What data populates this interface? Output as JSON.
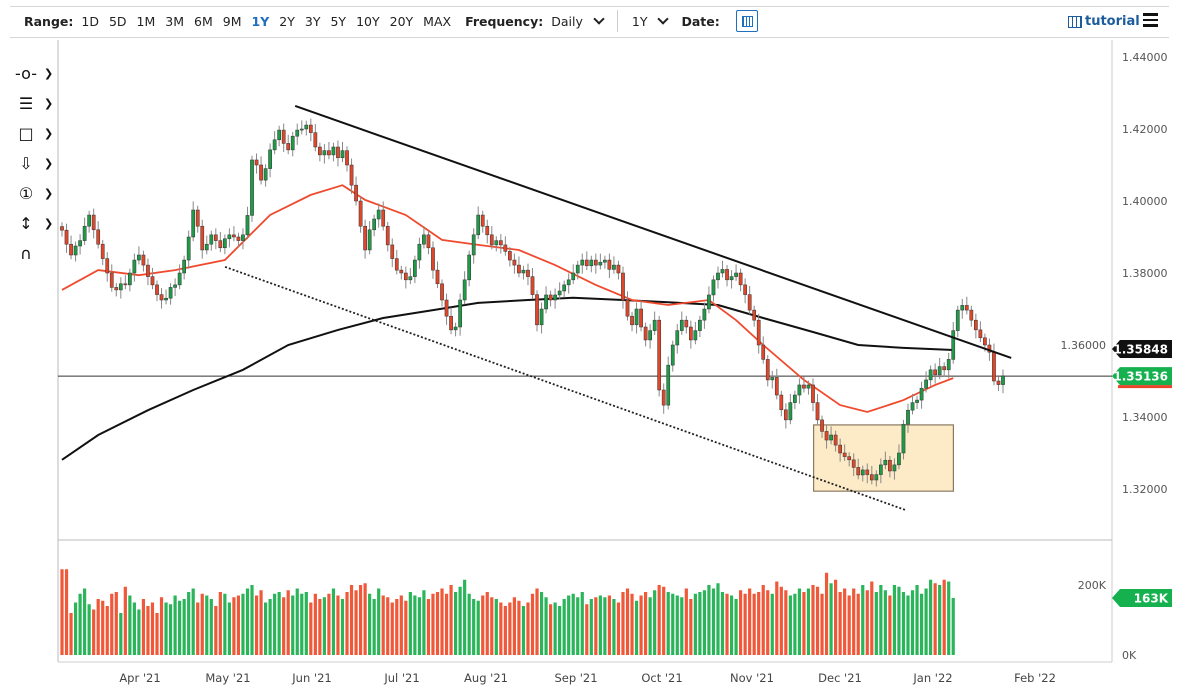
{
  "toolbar": {
    "range_label": "Range:",
    "ranges": [
      "1D",
      "5D",
      "1M",
      "3M",
      "6M",
      "9M",
      "1Y",
      "2Y",
      "3Y",
      "5Y",
      "10Y",
      "20Y",
      "MAX"
    ],
    "active_range": "1Y",
    "frequency_label": "Frequency:",
    "frequency_value": "Daily",
    "period_value": "1Y",
    "date_label": "Date:",
    "tutorial_label": "tutorial",
    "accent_color": "#1e6fbf"
  },
  "left_tools": [
    {
      "icon": "line-node-icon",
      "glyph": "-o-"
    },
    {
      "icon": "fib-lines-icon",
      "glyph": "☰"
    },
    {
      "icon": "rectangle-icon",
      "glyph": "□"
    },
    {
      "icon": "arrow-down-icon",
      "glyph": "⇩"
    },
    {
      "icon": "number-marker-icon",
      "glyph": "①"
    },
    {
      "icon": "measure-icon",
      "glyph": "↕"
    },
    {
      "icon": "magnet-icon",
      "glyph": "∩"
    }
  ],
  "chart_data": {
    "type": "candlestick",
    "frequency": "Daily",
    "x_tick_labels": [
      "Apr '21",
      "May '21",
      "Jun '21",
      "Jul '21",
      "Aug '21",
      "Sep '21",
      "Oct '21",
      "Nov '21",
      "Dec '21",
      "Jan '22",
      "Feb '22"
    ],
    "y_tick_labels": [
      "1.44000",
      "1.42000",
      "1.40000",
      "1.38000",
      "1.36000",
      "1.34000",
      "1.32000"
    ],
    "ylim": [
      1.3085,
      1.4455
    ],
    "volume_tick_labels": [
      "200K",
      "0K"
    ],
    "volume_ylim": [
      0,
      250
    ],
    "colors": {
      "up": "#1f9a47",
      "down": "#e0472a",
      "ma_fast": "#f04a2e",
      "ma_slow": "#111111"
    },
    "closes": [
      1.3919,
      1.388,
      1.385,
      1.3875,
      1.389,
      1.393,
      1.3961,
      1.392,
      1.388,
      1.384,
      1.38,
      1.376,
      1.3753,
      1.377,
      1.3767,
      1.38,
      1.3836,
      1.385,
      1.3822,
      1.379,
      1.3767,
      1.374,
      1.3725,
      1.373,
      1.376,
      1.3767,
      1.38,
      1.3836,
      1.39,
      1.3975,
      1.393,
      1.3864,
      1.388,
      1.3906,
      1.389,
      1.387,
      1.3895,
      1.3906,
      1.39,
      1.389,
      1.3906,
      1.396,
      1.4114,
      1.41,
      1.4058,
      1.409,
      1.4142,
      1.417,
      1.4197,
      1.416,
      1.4142,
      1.418,
      1.4197,
      1.42,
      1.4211,
      1.419,
      1.415,
      1.4128,
      1.414,
      1.4128,
      1.415,
      1.412,
      1.414,
      1.41,
      1.4044,
      1.4,
      1.393,
      1.3864,
      1.392,
      1.395,
      1.3975,
      1.393,
      1.3878,
      1.384,
      1.3808,
      1.38,
      1.3781,
      1.379,
      1.3836,
      1.388,
      1.3906,
      1.387,
      1.3808,
      1.377,
      1.3725,
      1.368,
      1.3642,
      1.365,
      1.3725,
      1.3781,
      1.385,
      1.3906,
      1.3961,
      1.393,
      1.3906,
      1.3878,
      1.389,
      1.3878,
      1.386,
      1.3836,
      1.3822,
      1.38,
      1.3808,
      1.379,
      1.374,
      1.3656,
      1.37,
      1.3739,
      1.3725,
      1.3739,
      1.375,
      1.3767,
      1.3781,
      1.38,
      1.3822,
      1.3836,
      1.382,
      1.3836,
      1.3822,
      1.383,
      1.3836,
      1.381,
      1.3822,
      1.38,
      1.3725,
      1.368,
      1.3656,
      1.37,
      1.365,
      1.3614,
      1.364,
      1.3669,
      1.3475,
      1.3433,
      1.3544,
      1.36,
      1.364,
      1.3669,
      1.365,
      1.3614,
      1.364,
      1.3669,
      1.37,
      1.3739,
      1.3781,
      1.38,
      1.381,
      1.3781,
      1.379,
      1.38,
      1.3767,
      1.374,
      1.3697,
      1.3669,
      1.36,
      1.356,
      1.3503,
      1.351,
      1.3461,
      1.342,
      1.3392,
      1.344,
      1.3461,
      1.3489,
      1.348,
      1.3489,
      1.344,
      1.3392,
      1.336,
      1.3336,
      1.335,
      1.3322,
      1.33,
      1.329,
      1.3281,
      1.326,
      1.3239,
      1.3253,
      1.324,
      1.3225,
      1.324,
      1.3267,
      1.328,
      1.325,
      1.3267,
      1.33,
      1.338,
      1.3419,
      1.344,
      1.3447,
      1.348,
      1.3503,
      1.3531,
      1.3517,
      1.354,
      1.3531,
      1.356,
      1.364,
      1.3697,
      1.371,
      1.3697,
      1.3669,
      1.3642,
      1.362,
      1.36,
      1.358,
      1.35,
      1.349,
      1.3514
    ],
    "volumes_k": [
      245,
      245,
      120,
      150,
      175,
      190,
      145,
      130,
      160,
      155,
      140,
      175,
      180,
      120,
      195,
      170,
      150,
      130,
      160,
      140,
      150,
      120,
      165,
      150,
      145,
      170,
      155,
      160,
      180,
      190,
      150,
      175,
      170,
      160,
      140,
      180,
      175,
      150,
      165,
      170,
      175,
      190,
      200,
      170,
      185,
      150,
      160,
      175,
      180,
      165,
      185,
      170,
      190,
      175,
      180,
      150,
      175,
      160,
      165,
      175,
      190,
      170,
      160,
      180,
      200,
      185,
      200,
      205,
      175,
      160,
      190,
      170,
      165,
      150,
      160,
      170,
      155,
      180,
      170,
      165,
      185,
      160,
      175,
      180,
      190,
      175,
      200,
      180,
      195,
      215,
      175,
      160,
      155,
      170,
      180,
      165,
      160,
      150,
      140,
      150,
      165,
      155,
      140,
      150,
      175,
      190,
      180,
      165,
      145,
      150,
      140,
      160,
      170,
      175,
      165,
      180,
      145,
      160,
      165,
      170,
      165,
      170,
      160,
      150,
      180,
      190,
      175,
      155,
      170,
      180,
      165,
      185,
      200,
      195,
      180,
      175,
      170,
      165,
      190,
      160,
      175,
      180,
      185,
      200,
      190,
      205,
      180,
      175,
      170,
      160,
      185,
      175,
      190,
      175,
      180,
      200,
      185,
      175,
      210,
      195,
      185,
      170,
      175,
      190,
      180,
      190,
      200,
      195,
      175,
      235,
      205,
      215,
      180,
      190,
      170,
      190,
      175,
      200,
      185,
      210,
      180,
      200,
      185,
      170,
      200,
      195,
      180,
      170,
      185,
      200,
      175,
      190,
      215,
      205,
      200,
      215,
      210,
      163
    ],
    "ma_fast": [
      [
        0,
        1.3753
      ],
      [
        8,
        1.3808
      ],
      [
        17,
        1.3794
      ],
      [
        25,
        1.3808
      ],
      [
        36,
        1.3836
      ],
      [
        46,
        1.3961
      ],
      [
        55,
        1.4017
      ],
      [
        62,
        1.4044
      ],
      [
        67,
        1.4003
      ],
      [
        76,
        1.3961
      ],
      [
        84,
        1.3892
      ],
      [
        92,
        1.3878
      ],
      [
        101,
        1.3864
      ],
      [
        109,
        1.3822
      ],
      [
        118,
        1.3767
      ],
      [
        126,
        1.3725
      ],
      [
        134,
        1.3711
      ],
      [
        143,
        1.3725
      ],
      [
        149,
        1.3669
      ],
      [
        155,
        1.36
      ],
      [
        164,
        1.3503
      ],
      [
        172,
        1.3433
      ],
      [
        178,
        1.3414
      ],
      [
        186,
        1.3447
      ],
      [
        193,
        1.3489
      ],
      [
        197,
        1.3508
      ]
    ],
    "ma_slow": [
      [
        0,
        1.3281
      ],
      [
        8,
        1.335
      ],
      [
        19,
        1.3419
      ],
      [
        29,
        1.3475
      ],
      [
        40,
        1.3531
      ],
      [
        50,
        1.36
      ],
      [
        61,
        1.3642
      ],
      [
        71,
        1.3675
      ],
      [
        82,
        1.3697
      ],
      [
        92,
        1.3717
      ],
      [
        103,
        1.3725
      ],
      [
        113,
        1.3731
      ],
      [
        124,
        1.3725
      ],
      [
        134,
        1.3719
      ],
      [
        145,
        1.3711
      ],
      [
        155,
        1.3675
      ],
      [
        166,
        1.3636
      ],
      [
        176,
        1.36
      ],
      [
        186,
        1.3592
      ],
      [
        197,
        1.3586
      ]
    ],
    "trendline_resistance": {
      "from": [
        "2021-05-25",
        1.4264
      ],
      "to": [
        "2022-01-24",
        1.3564
      ]
    },
    "trendline_support_dotted": {
      "from": [
        "2021-04-30",
        1.3817
      ],
      "to": [
        "2021-12-22",
        1.3142
      ]
    },
    "box": {
      "from": "2021-11-22",
      "to": "2022-01-07",
      "top": 1.3378,
      "bottom": 1.3194,
      "fill": "#fdebc8"
    },
    "horizontal_line": 1.35136,
    "price_tags": {
      "ma_slow_label": "1.35848",
      "last_price_label": "1.35136",
      "volume_label": "163K"
    }
  }
}
